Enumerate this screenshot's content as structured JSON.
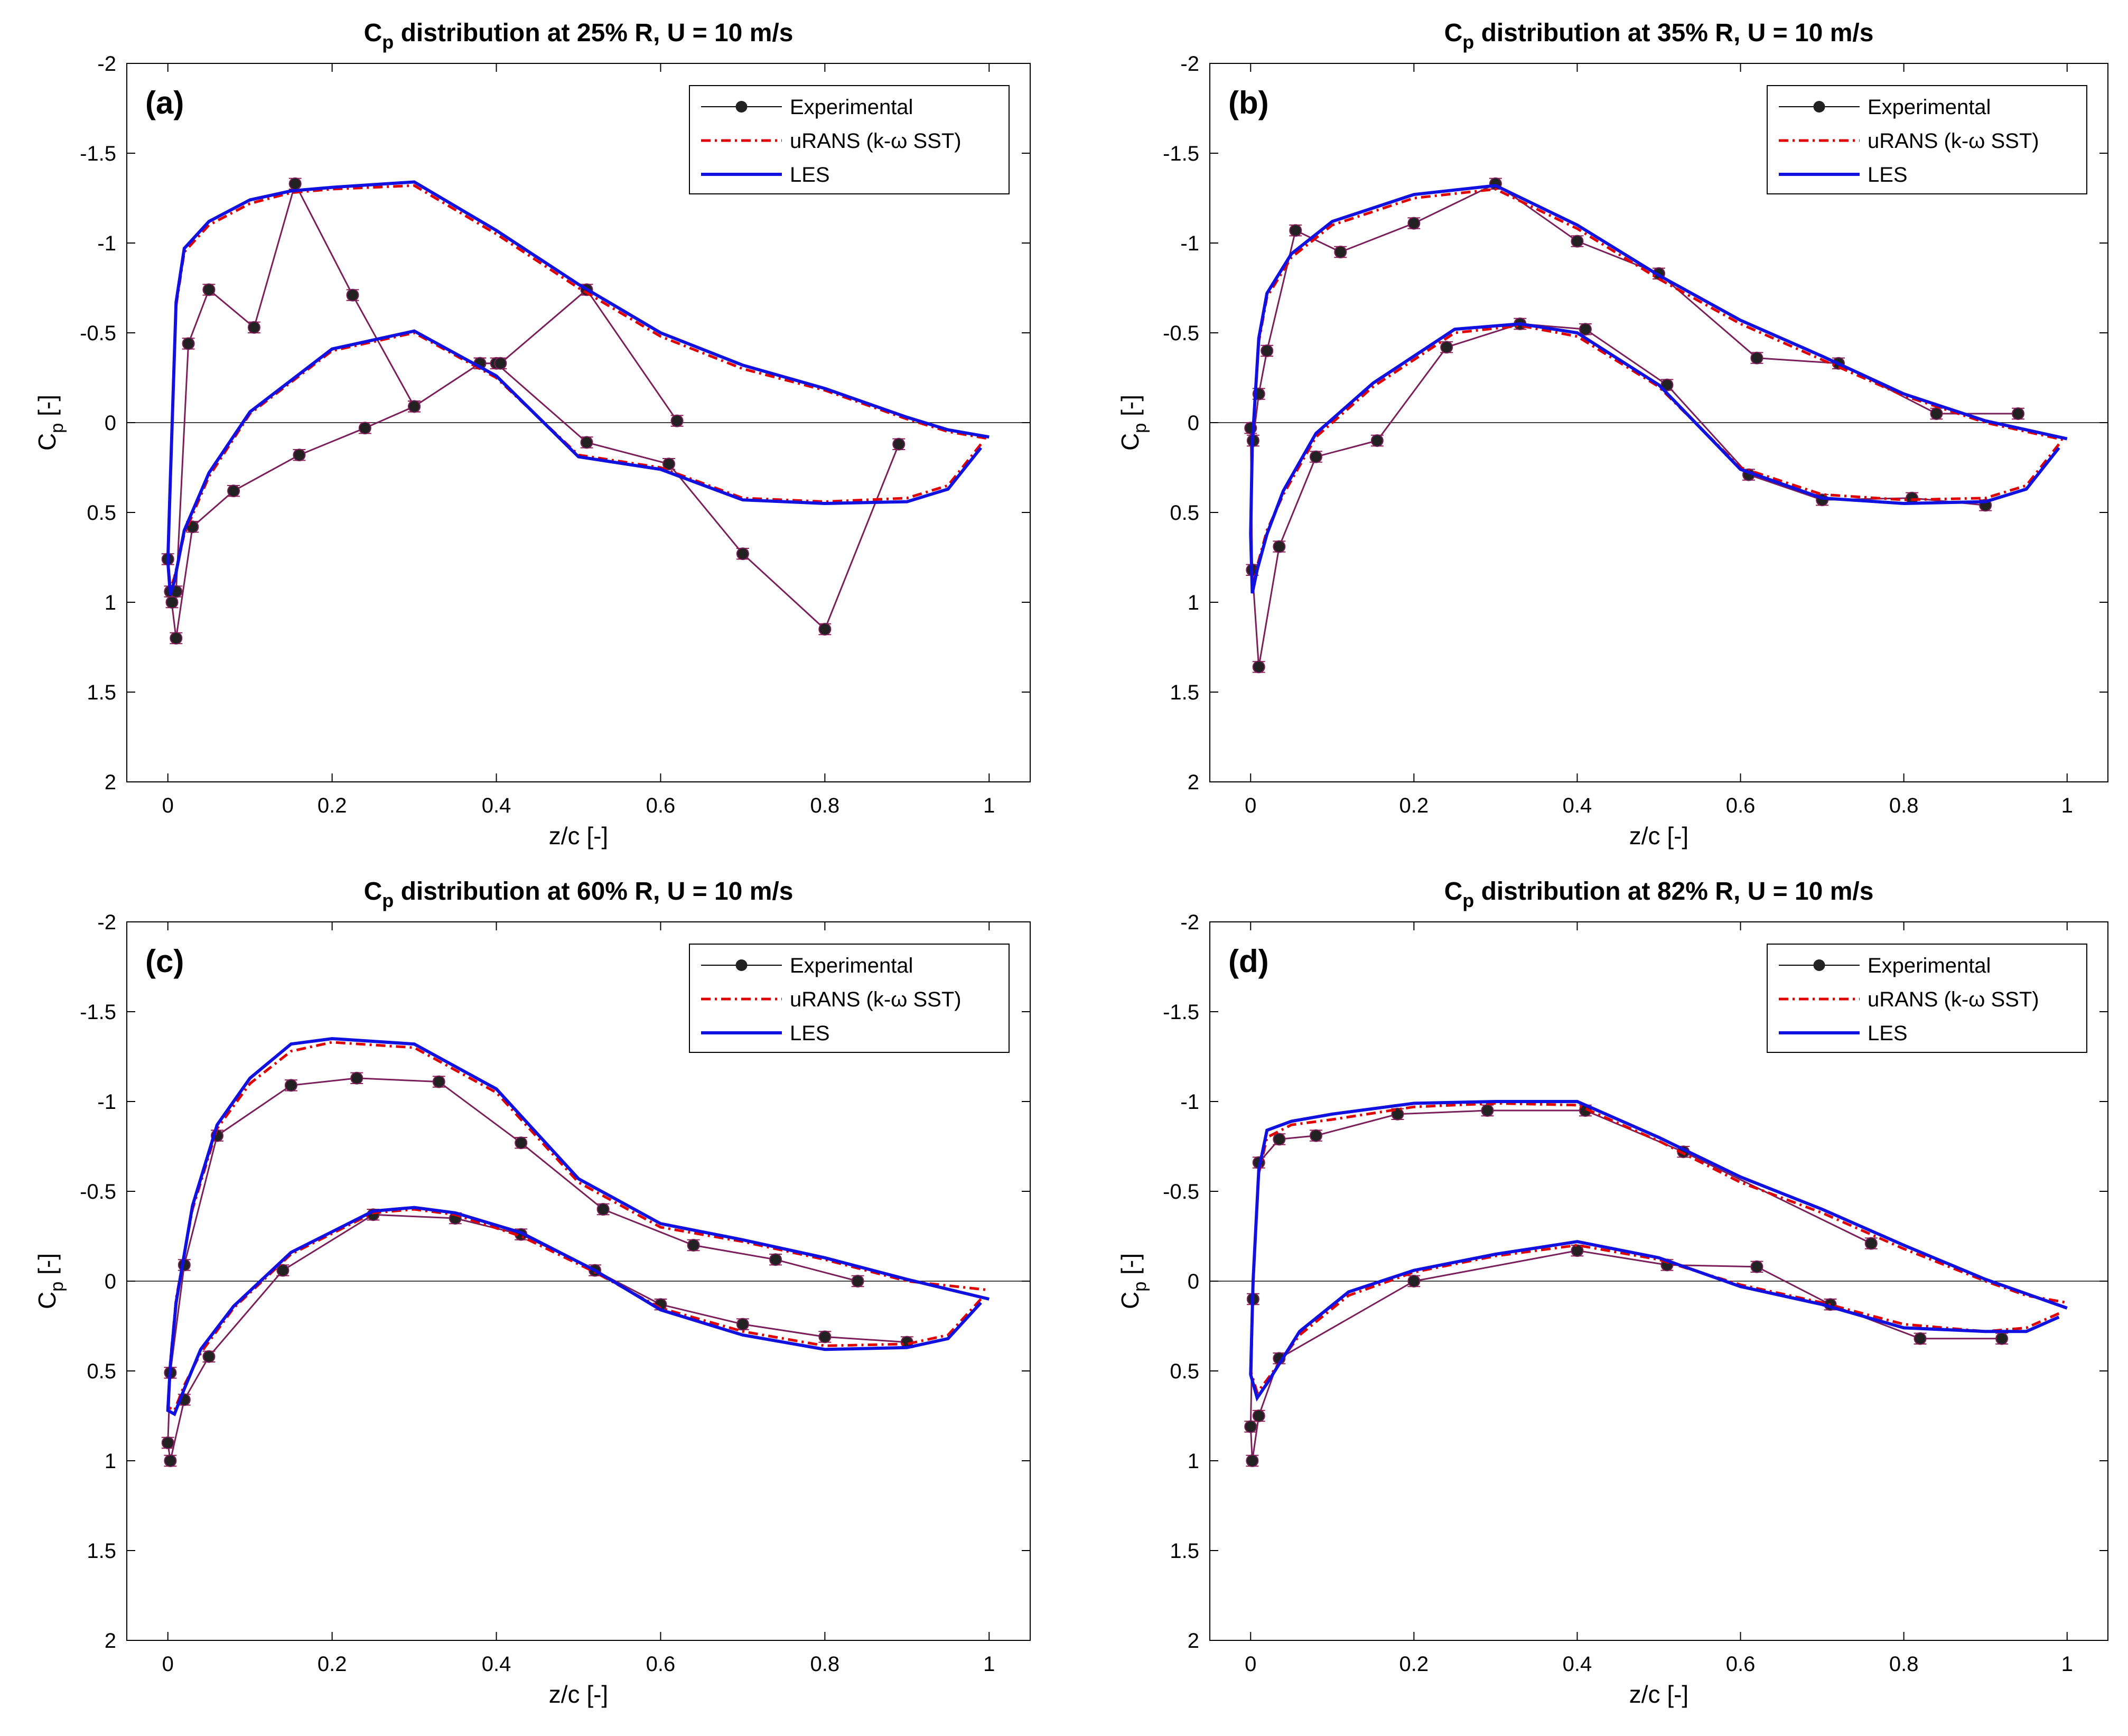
{
  "figure": {
    "panel_count": 4
  },
  "legend_entries": [
    "Experimental",
    "uRANS (k-ω SST)",
    "LES"
  ],
  "colors": {
    "experimental_marker": "#222222",
    "experimental_line": "#7a1f5a",
    "urans": "#e00000",
    "les": "#1010e0",
    "axis": "#000000",
    "zero_line": "#000000",
    "errorbar": "#8b2252"
  },
  "chart_data": [
    {
      "type": "line",
      "panel_letter": "(a)",
      "title": {
        "main": "C",
        "sub": "p",
        "rest": " distribution at 25% R, U = 10 m/s"
      },
      "xlabel": "z/c [-]",
      "ylabel": {
        "main": "C",
        "sub": "p",
        "rest": " [-]"
      },
      "xlim": [
        -0.05,
        1.05
      ],
      "ylim": [
        -2,
        2
      ],
      "y_reversed": true,
      "xticks": [
        0,
        0.2,
        0.4,
        0.6,
        0.8,
        1
      ],
      "xtick_labels": [
        "0",
        "0.2",
        "0.4",
        "0.6",
        "0.8",
        "1"
      ],
      "yticks": [
        -2,
        -1.5,
        -1,
        -0.5,
        0,
        0.5,
        1,
        1.5,
        2
      ],
      "ytick_labels": [
        "-2",
        "-1.5",
        "-1",
        "-0.5",
        "0",
        "0.5",
        "1",
        "1.5",
        "2"
      ],
      "legend": {
        "placement": "top-right"
      },
      "series": [
        {
          "name": "Experimental",
          "kind": "experimental",
          "x": [
            0.89,
            0.8,
            0.7,
            0.61,
            0.51,
            0.4,
            0.38,
            0.3,
            0.24,
            0.16,
            0.08,
            0.03,
            0.01,
            0.003,
            0.0,
            0.005,
            0.01,
            0.025,
            0.05,
            0.105,
            0.155,
            0.225,
            0.3,
            0.38,
            0.405,
            0.51,
            0.62
          ],
          "y": [
            0.12,
            1.15,
            0.73,
            0.23,
            0.11,
            -0.33,
            -0.33,
            -0.09,
            0.03,
            0.18,
            0.38,
            0.58,
            1.2,
            0.94,
            0.76,
            1.0,
            0.94,
            -0.44,
            -0.74,
            -0.53,
            -1.33,
            -0.71,
            -0.09,
            -0.33,
            -0.33,
            -0.74,
            -0.01
          ],
          "yerr": 0.03
        },
        {
          "name": "uRANS (k-ω SST)",
          "kind": "urans",
          "x": [
            0.99,
            0.95,
            0.9,
            0.8,
            0.7,
            0.6,
            0.5,
            0.4,
            0.3,
            0.2,
            0.1,
            0.05,
            0.02,
            0.008,
            0.003,
            0.0,
            0.003,
            0.01,
            0.02,
            0.05,
            0.1,
            0.15,
            0.2,
            0.3,
            0.4,
            0.5,
            0.6,
            0.7,
            0.8,
            0.9,
            0.95,
            1.0
          ],
          "y": [
            0.12,
            0.35,
            0.42,
            0.44,
            0.42,
            0.25,
            0.18,
            -0.25,
            -0.5,
            -0.4,
            -0.05,
            0.3,
            0.62,
            0.86,
            0.93,
            0.75,
            0.3,
            -0.65,
            -0.95,
            -1.1,
            -1.22,
            -1.28,
            -1.3,
            -1.32,
            -1.05,
            -0.75,
            -0.48,
            -0.3,
            -0.18,
            -0.02,
            0.05,
            0.09
          ]
        },
        {
          "name": "LES",
          "kind": "les",
          "x": [
            0.99,
            0.95,
            0.9,
            0.8,
            0.7,
            0.6,
            0.5,
            0.4,
            0.3,
            0.2,
            0.1,
            0.05,
            0.02,
            0.008,
            0.003,
            0.0,
            0.003,
            0.01,
            0.02,
            0.05,
            0.1,
            0.15,
            0.2,
            0.3,
            0.4,
            0.5,
            0.6,
            0.7,
            0.8,
            0.9,
            0.95,
            1.0
          ],
          "y": [
            0.14,
            0.37,
            0.44,
            0.45,
            0.43,
            0.26,
            0.19,
            -0.26,
            -0.51,
            -0.41,
            -0.06,
            0.28,
            0.6,
            0.88,
            0.96,
            0.77,
            0.32,
            -0.67,
            -0.97,
            -1.12,
            -1.24,
            -1.29,
            -1.31,
            -1.34,
            -1.07,
            -0.77,
            -0.5,
            -0.32,
            -0.19,
            -0.03,
            0.04,
            0.08
          ]
        }
      ]
    },
    {
      "type": "line",
      "panel_letter": "(b)",
      "title": {
        "main": "C",
        "sub": "p",
        "rest": " distribution at 35% R, U = 10 m/s"
      },
      "xlabel": "z/c [-]",
      "ylabel": {
        "main": "C",
        "sub": "p",
        "rest": " [-]"
      },
      "xlim": [
        -0.05,
        1.05
      ],
      "ylim": [
        -2,
        2
      ],
      "y_reversed": true,
      "xticks": [
        0,
        0.2,
        0.4,
        0.6,
        0.8,
        1
      ],
      "xtick_labels": [
        "0",
        "0.2",
        "0.4",
        "0.6",
        "0.8",
        "1"
      ],
      "yticks": [
        -2,
        -1.5,
        -1,
        -0.5,
        0,
        0.5,
        1,
        1.5,
        2
      ],
      "ytick_labels": [
        "-2",
        "-1.5",
        "-1",
        "-0.5",
        "0",
        "0.5",
        "1",
        "1.5",
        "2"
      ],
      "legend": {
        "placement": "top-right"
      },
      "series": [
        {
          "name": "Experimental",
          "kind": "experimental",
          "x": [
            0.9,
            0.81,
            0.7,
            0.61,
            0.51,
            0.41,
            0.33,
            0.24,
            0.155,
            0.08,
            0.035,
            0.01,
            0.002,
            0.0,
            0.003,
            0.01,
            0.02,
            0.055,
            0.11,
            0.2,
            0.3,
            0.4,
            0.5,
            0.62,
            0.72,
            0.84,
            0.94
          ],
          "y": [
            0.46,
            0.42,
            0.43,
            0.29,
            -0.21,
            -0.52,
            -0.55,
            -0.42,
            0.1,
            0.19,
            0.69,
            1.36,
            0.82,
            0.03,
            0.1,
            -0.16,
            -0.4,
            -1.07,
            -0.95,
            -1.11,
            -1.33,
            -1.01,
            -0.83,
            -0.36,
            -0.33,
            -0.05,
            -0.05
          ],
          "yerr": 0.03
        },
        {
          "name": "uRANS (k-ω SST)",
          "kind": "urans",
          "x": [
            0.99,
            0.95,
            0.9,
            0.8,
            0.7,
            0.6,
            0.5,
            0.4,
            0.33,
            0.25,
            0.15,
            0.08,
            0.04,
            0.02,
            0.008,
            0.002,
            0.0,
            0.002,
            0.01,
            0.02,
            0.05,
            0.1,
            0.2,
            0.3,
            0.4,
            0.5,
            0.6,
            0.7,
            0.8,
            0.9,
            0.95,
            1.0
          ],
          "y": [
            0.12,
            0.35,
            0.42,
            0.43,
            0.4,
            0.25,
            -0.2,
            -0.48,
            -0.54,
            -0.5,
            -0.2,
            0.08,
            0.4,
            0.6,
            0.8,
            0.93,
            0.6,
            0.1,
            -0.45,
            -0.7,
            -0.92,
            -1.1,
            -1.25,
            -1.3,
            -1.08,
            -0.8,
            -0.55,
            -0.35,
            -0.15,
            0.0,
            0.05,
            0.1
          ]
        },
        {
          "name": "LES",
          "kind": "les",
          "x": [
            0.99,
            0.95,
            0.9,
            0.8,
            0.7,
            0.6,
            0.5,
            0.4,
            0.33,
            0.25,
            0.15,
            0.08,
            0.04,
            0.02,
            0.008,
            0.002,
            0.0,
            0.002,
            0.01,
            0.02,
            0.05,
            0.1,
            0.2,
            0.3,
            0.4,
            0.5,
            0.6,
            0.7,
            0.8,
            0.9,
            0.95,
            1.0
          ],
          "y": [
            0.14,
            0.37,
            0.44,
            0.45,
            0.42,
            0.26,
            -0.21,
            -0.5,
            -0.55,
            -0.52,
            -0.22,
            0.06,
            0.38,
            0.62,
            0.82,
            0.95,
            0.62,
            0.12,
            -0.47,
            -0.72,
            -0.94,
            -1.12,
            -1.27,
            -1.32,
            -1.1,
            -0.82,
            -0.57,
            -0.37,
            -0.16,
            -0.01,
            0.04,
            0.09
          ]
        }
      ]
    },
    {
      "type": "line",
      "panel_letter": "(c)",
      "title": {
        "main": "C",
        "sub": "p",
        "rest": " distribution at 60% R, U = 10 m/s"
      },
      "xlabel": "z/c [-]",
      "ylabel": {
        "main": "C",
        "sub": "p",
        "rest": " [-]"
      },
      "xlim": [
        -0.05,
        1.05
      ],
      "ylim": [
        -2,
        2
      ],
      "y_reversed": true,
      "xticks": [
        0,
        0.2,
        0.4,
        0.6,
        0.8,
        1
      ],
      "xtick_labels": [
        "0",
        "0.2",
        "0.4",
        "0.6",
        "0.8",
        "1"
      ],
      "yticks": [
        -2,
        -1.5,
        -1,
        -0.5,
        0,
        0.5,
        1,
        1.5,
        2
      ],
      "ytick_labels": [
        "-2",
        "-1.5",
        "-1",
        "-0.5",
        "0",
        "0.5",
        "1",
        "1.5",
        "2"
      ],
      "legend": {
        "placement": "top-right"
      },
      "series": [
        {
          "name": "Experimental",
          "kind": "experimental",
          "x": [
            0.9,
            0.8,
            0.7,
            0.6,
            0.52,
            0.43,
            0.35,
            0.25,
            0.14,
            0.05,
            0.02,
            0.003,
            0.0,
            0.003,
            0.02,
            0.06,
            0.15,
            0.23,
            0.33,
            0.43,
            0.53,
            0.64,
            0.74,
            0.84
          ],
          "y": [
            0.34,
            0.31,
            0.24,
            0.13,
            -0.06,
            -0.26,
            -0.35,
            -0.37,
            -0.06,
            0.42,
            0.66,
            1.0,
            0.9,
            0.51,
            -0.09,
            -0.81,
            -1.09,
            -1.13,
            -1.11,
            -0.77,
            -0.4,
            -0.2,
            -0.12,
            0.0
          ],
          "yerr": 0.03
        },
        {
          "name": "uRANS (k-ω SST)",
          "kind": "urans",
          "x": [
            0.99,
            0.95,
            0.9,
            0.8,
            0.7,
            0.6,
            0.52,
            0.43,
            0.35,
            0.3,
            0.25,
            0.15,
            0.08,
            0.04,
            0.02,
            0.008,
            0.0,
            0.003,
            0.01,
            0.03,
            0.06,
            0.1,
            0.15,
            0.2,
            0.3,
            0.4,
            0.5,
            0.6,
            0.7,
            0.8,
            0.9,
            1.0
          ],
          "y": [
            0.1,
            0.3,
            0.35,
            0.36,
            0.28,
            0.15,
            -0.05,
            -0.25,
            -0.37,
            -0.4,
            -0.38,
            -0.15,
            0.15,
            0.4,
            0.58,
            0.72,
            0.7,
            0.45,
            0.1,
            -0.4,
            -0.85,
            -1.1,
            -1.28,
            -1.33,
            -1.3,
            -1.05,
            -0.55,
            -0.3,
            -0.22,
            -0.12,
            0.0,
            0.05
          ]
        },
        {
          "name": "LES",
          "kind": "les",
          "x": [
            0.99,
            0.95,
            0.9,
            0.8,
            0.7,
            0.6,
            0.52,
            0.43,
            0.35,
            0.3,
            0.25,
            0.15,
            0.08,
            0.04,
            0.02,
            0.008,
            0.0,
            0.003,
            0.01,
            0.03,
            0.06,
            0.1,
            0.15,
            0.2,
            0.3,
            0.4,
            0.5,
            0.6,
            0.7,
            0.8,
            0.9,
            1.0
          ],
          "y": [
            0.12,
            0.32,
            0.37,
            0.38,
            0.3,
            0.16,
            -0.06,
            -0.27,
            -0.38,
            -0.41,
            -0.39,
            -0.16,
            0.14,
            0.38,
            0.6,
            0.74,
            0.72,
            0.47,
            0.12,
            -0.42,
            -0.87,
            -1.13,
            -1.32,
            -1.35,
            -1.32,
            -1.07,
            -0.57,
            -0.32,
            -0.23,
            -0.13,
            -0.01,
            0.1
          ]
        }
      ]
    },
    {
      "type": "line",
      "panel_letter": "(d)",
      "title": {
        "main": "C",
        "sub": "p",
        "rest": " distribution at 82% R, U = 10 m/s"
      },
      "xlabel": "z/c [-]",
      "ylabel": {
        "main": "C",
        "sub": "p",
        "rest": " [-]"
      },
      "xlim": [
        -0.05,
        1.05
      ],
      "ylim": [
        -2,
        2
      ],
      "y_reversed": true,
      "xticks": [
        0,
        0.2,
        0.4,
        0.6,
        0.8,
        1
      ],
      "xtick_labels": [
        "0",
        "0.2",
        "0.4",
        "0.6",
        "0.8",
        "1"
      ],
      "yticks": [
        -2,
        -1.5,
        -1,
        -0.5,
        0,
        0.5,
        1,
        1.5,
        2
      ],
      "ytick_labels": [
        "-2",
        "-1.5",
        "-1",
        "-0.5",
        "0",
        "0.5",
        "1",
        "1.5",
        "2"
      ],
      "legend": {
        "placement": "top-right"
      },
      "series": [
        {
          "name": "Experimental",
          "kind": "experimental",
          "x": [
            0.92,
            0.82,
            0.71,
            0.62,
            0.51,
            0.4,
            0.2,
            0.035,
            0.01,
            0.002,
            0.0,
            0.003,
            0.01,
            0.035,
            0.08,
            0.18,
            0.29,
            0.41,
            0.53,
            0.76
          ],
          "y": [
            0.32,
            0.32,
            0.13,
            -0.08,
            -0.09,
            -0.17,
            0.0,
            0.43,
            0.75,
            1.0,
            0.81,
            0.1,
            -0.66,
            -0.79,
            -0.81,
            -0.93,
            -0.95,
            -0.95,
            -0.72,
            -0.21
          ],
          "yerr": 0.03
        },
        {
          "name": "uRANS (k-ω SST)",
          "kind": "urans",
          "x": [
            0.99,
            0.95,
            0.9,
            0.8,
            0.7,
            0.6,
            0.5,
            0.4,
            0.3,
            0.2,
            0.12,
            0.06,
            0.02,
            0.008,
            0.0,
            0.003,
            0.01,
            0.02,
            0.05,
            0.1,
            0.2,
            0.3,
            0.4,
            0.5,
            0.6,
            0.7,
            0.8,
            0.9,
            0.95,
            1.0
          ],
          "y": [
            0.18,
            0.26,
            0.28,
            0.24,
            0.12,
            0.02,
            -0.12,
            -0.2,
            -0.14,
            -0.05,
            0.08,
            0.3,
            0.55,
            0.62,
            0.5,
            0.0,
            -0.6,
            -0.8,
            -0.87,
            -0.9,
            -0.97,
            -0.99,
            -0.98,
            -0.78,
            -0.55,
            -0.38,
            -0.18,
            0.0,
            0.08,
            0.12
          ]
        },
        {
          "name": "LES",
          "kind": "les",
          "x": [
            0.99,
            0.95,
            0.9,
            0.8,
            0.7,
            0.6,
            0.5,
            0.4,
            0.3,
            0.2,
            0.12,
            0.06,
            0.02,
            0.008,
            0.0,
            0.003,
            0.01,
            0.02,
            0.05,
            0.1,
            0.2,
            0.3,
            0.4,
            0.5,
            0.6,
            0.7,
            0.8,
            0.9,
            0.95,
            1.0
          ],
          "y": [
            0.2,
            0.28,
            0.28,
            0.26,
            0.13,
            0.03,
            -0.13,
            -0.22,
            -0.15,
            -0.06,
            0.06,
            0.28,
            0.57,
            0.65,
            0.52,
            0.0,
            -0.62,
            -0.84,
            -0.89,
            -0.93,
            -0.99,
            -1.0,
            -1.0,
            -0.8,
            -0.58,
            -0.4,
            -0.2,
            -0.01,
            0.07,
            0.15
          ]
        }
      ]
    }
  ]
}
